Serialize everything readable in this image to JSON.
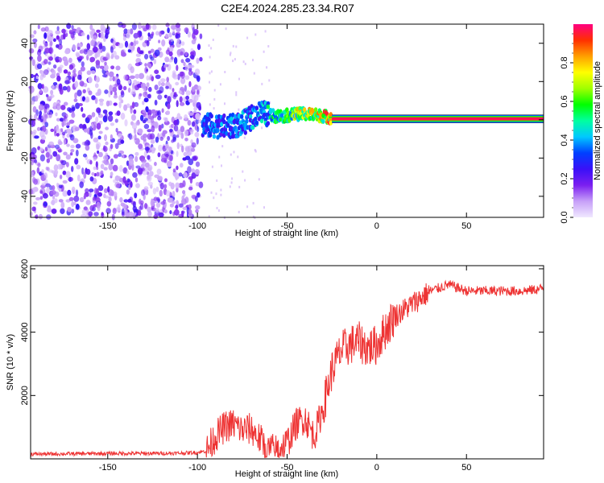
{
  "title": "C2E4.2024.285.23.34.R07",
  "chart_data": [
    {
      "type": "heatmap",
      "description_of_axes": "spectrogram",
      "xlabel": "Height of straight line (km)",
      "ylabel": "Frequency (Hz)",
      "xlim": [
        -193,
        93
      ],
      "ylim": [
        -51,
        50
      ],
      "xticks": [
        -150,
        -100,
        -50,
        0,
        50
      ],
      "yticks": [
        -40,
        -20,
        0,
        20,
        40
      ],
      "noise_region_x": [
        -193,
        -98
      ],
      "signal_track": [
        {
          "x": -97,
          "y": -3,
          "amp": 0.35
        },
        {
          "x": -90,
          "y": -3,
          "amp": 0.38
        },
        {
          "x": -83,
          "y": -4,
          "amp": 0.4
        },
        {
          "x": -75,
          "y": -2,
          "amp": 0.42
        },
        {
          "x": -65,
          "y": 4,
          "amp": 0.45
        },
        {
          "x": -58,
          "y": 2,
          "amp": 0.55
        },
        {
          "x": -52,
          "y": 2,
          "amp": 0.6
        },
        {
          "x": -45,
          "y": 3,
          "amp": 0.75
        },
        {
          "x": -38,
          "y": 3,
          "amp": 0.8
        },
        {
          "x": -30,
          "y": 2,
          "amp": 0.85
        },
        {
          "x": -22,
          "y": 0.5,
          "amp": 0.9
        },
        {
          "x": -10,
          "y": 0.5,
          "amp": 0.9
        },
        {
          "x": 0,
          "y": 0.5,
          "amp": 0.95
        },
        {
          "x": 30,
          "y": 0.5,
          "amp": 0.97
        },
        {
          "x": 60,
          "y": 0.5,
          "amp": 0.98
        },
        {
          "x": 93,
          "y": 0.5,
          "amp": 1.0
        }
      ],
      "colorbar": {
        "label": "Normalized spectral amplitude",
        "range": [
          0,
          1
        ],
        "ticks": [
          "0.0",
          "0.2",
          "0.4",
          "0.6",
          "0.8"
        ],
        "colors": [
          "#f0e8ff",
          "#c7a0f8",
          "#7b1ff0",
          "#3a10f8",
          "#0040ff",
          "#00c8ff",
          "#00ffa0",
          "#00ff00",
          "#a0ff00",
          "#ffff00",
          "#ffa000",
          "#ff3000",
          "#ff0080"
        ]
      }
    },
    {
      "type": "line",
      "xlabel": "Height of straight line (km)",
      "ylabel": "SNR (10 * v/v)",
      "xlim": [
        -193,
        93
      ],
      "ylim": [
        0,
        6100
      ],
      "xticks": [
        -150,
        -100,
        -50,
        0,
        50
      ],
      "yticks": [
        2000,
        4000,
        6000
      ],
      "series": [
        {
          "color": "#ee3333",
          "x": [
            -193,
            -170,
            -150,
            -130,
            -110,
            -100,
            -95,
            -90,
            -85,
            -80,
            -75,
            -70,
            -65,
            -60,
            -55,
            -50,
            -45,
            -40,
            -35,
            -30,
            -25,
            -20,
            -15,
            -10,
            -5,
            0,
            5,
            10,
            15,
            20,
            25,
            30,
            35,
            40,
            45,
            50,
            60,
            70,
            80,
            90,
            93
          ],
          "y": [
            150,
            160,
            170,
            170,
            180,
            200,
            250,
            700,
            1000,
            1100,
            900,
            950,
            600,
            300,
            300,
            500,
            1100,
            1300,
            700,
            1600,
            2800,
            3400,
            3600,
            3700,
            3500,
            3600,
            4100,
            4500,
            4700,
            4900,
            5100,
            5300,
            5400,
            5500,
            5400,
            5300,
            5300,
            5300,
            5300,
            5350,
            5400
          ]
        }
      ]
    }
  ]
}
